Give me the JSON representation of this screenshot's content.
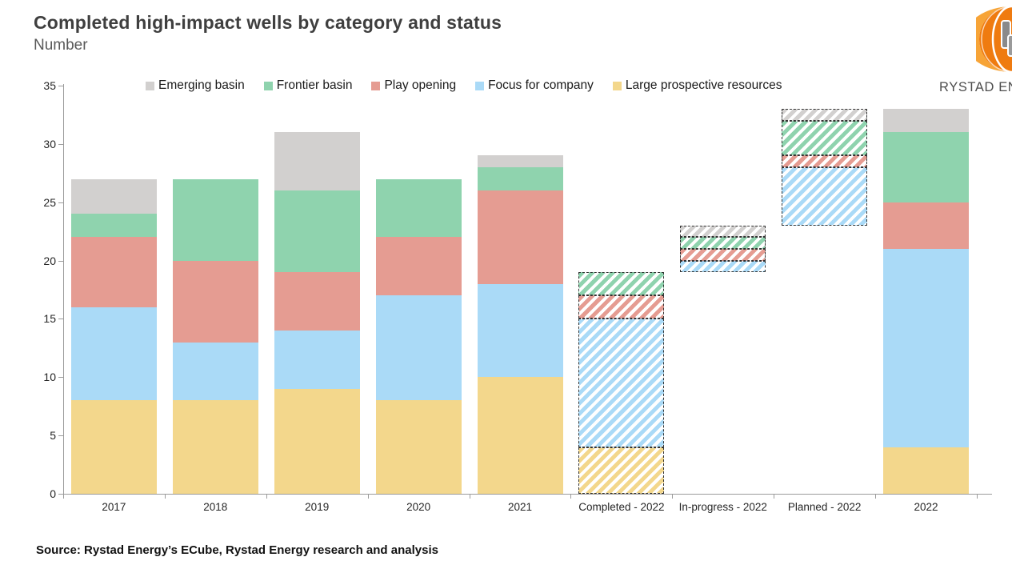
{
  "header": {
    "title": "Completed high-impact wells by category and status",
    "subtitle": "Number",
    "logo_text": "RYSTAD ENERGY",
    "logo_icon": "rystad-globe-icon",
    "logo_orange": "#EF7B10",
    "logo_orange_light": "#F7A437"
  },
  "source_line": "Source: Rystad Energy’s ECube, Rystad Energy research and analysis",
  "chart_data": {
    "type": "bar",
    "stacked": true,
    "title": "Completed high-impact wells by category and status",
    "ylabel": "Number",
    "xlabel": "",
    "ylim": [
      0,
      35
    ],
    "yticks": [
      0,
      5,
      10,
      15,
      20,
      25,
      30,
      35
    ],
    "grid": false,
    "legend_position": "top",
    "legend_order": [
      "Emerging basin",
      "Frontier basin",
      "Play opening",
      "Focus for company",
      "Large prospective resources"
    ],
    "categories": [
      "2017",
      "2018",
      "2019",
      "2020",
      "2021",
      "Completed - 2022",
      "In-progress - 2022",
      "Planned - 2022",
      "2022"
    ],
    "bar_base_offsets": [
      0,
      0,
      0,
      0,
      0,
      0,
      19,
      23,
      0
    ],
    "bar_hatched": [
      false,
      false,
      false,
      false,
      false,
      true,
      true,
      true,
      false
    ],
    "stack_totals": [
      27,
      27,
      31,
      27,
      29,
      19,
      4,
      10,
      33
    ],
    "series": [
      {
        "name": "Large prospective resources",
        "color": "#F3D78C",
        "values": [
          8,
          8,
          9,
          8,
          10,
          4,
          0,
          0,
          4
        ]
      },
      {
        "name": "Focus for company",
        "color": "#AADAF7",
        "values": [
          8,
          5,
          5,
          9,
          8,
          11,
          1,
          5,
          17
        ]
      },
      {
        "name": "Play opening",
        "color": "#E59C92",
        "values": [
          6,
          7,
          5,
          5,
          8,
          2,
          1,
          1,
          4
        ]
      },
      {
        "name": "Frontier basin",
        "color": "#8FD3AE",
        "values": [
          2,
          7,
          7,
          5,
          2,
          2,
          1,
          3,
          6
        ]
      },
      {
        "name": "Emerging basin",
        "color": "#D2D0CF",
        "values": [
          3,
          0,
          5,
          0,
          1,
          0,
          1,
          1,
          2
        ]
      }
    ]
  }
}
